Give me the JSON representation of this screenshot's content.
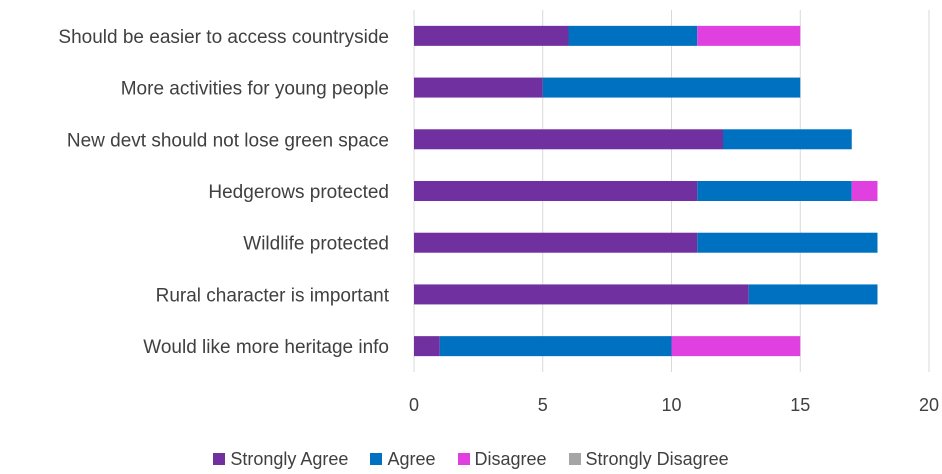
{
  "chart_data": {
    "type": "bar",
    "orientation": "horizontal",
    "stacked": true,
    "categories": [
      "Should be easier to access countryside",
      "More activities for young people",
      "New devt should not lose green space",
      "Hedgerows protected",
      "Wildlife protected",
      "Rural character is important",
      "Would like more heritage info"
    ],
    "series": [
      {
        "name": "Strongly Agree",
        "color": "#7030A0",
        "values": [
          6,
          5,
          12,
          11,
          11,
          13,
          1
        ]
      },
      {
        "name": "Agree",
        "color": "#0070C0",
        "values": [
          5,
          10,
          5,
          6,
          7,
          5,
          9
        ]
      },
      {
        "name": "Disagree",
        "color": "#E040E0",
        "values": [
          4,
          0,
          0,
          1,
          0,
          0,
          5
        ]
      },
      {
        "name": "Strongly Disagree",
        "color": "#A5A5A5",
        "values": [
          0,
          0,
          0,
          0,
          0,
          0,
          0
        ]
      }
    ],
    "xticks": [
      "0",
      "5",
      "10",
      "15",
      "20"
    ],
    "xlim": [
      0,
      20
    ],
    "grid": true,
    "legend": "bottom"
  }
}
